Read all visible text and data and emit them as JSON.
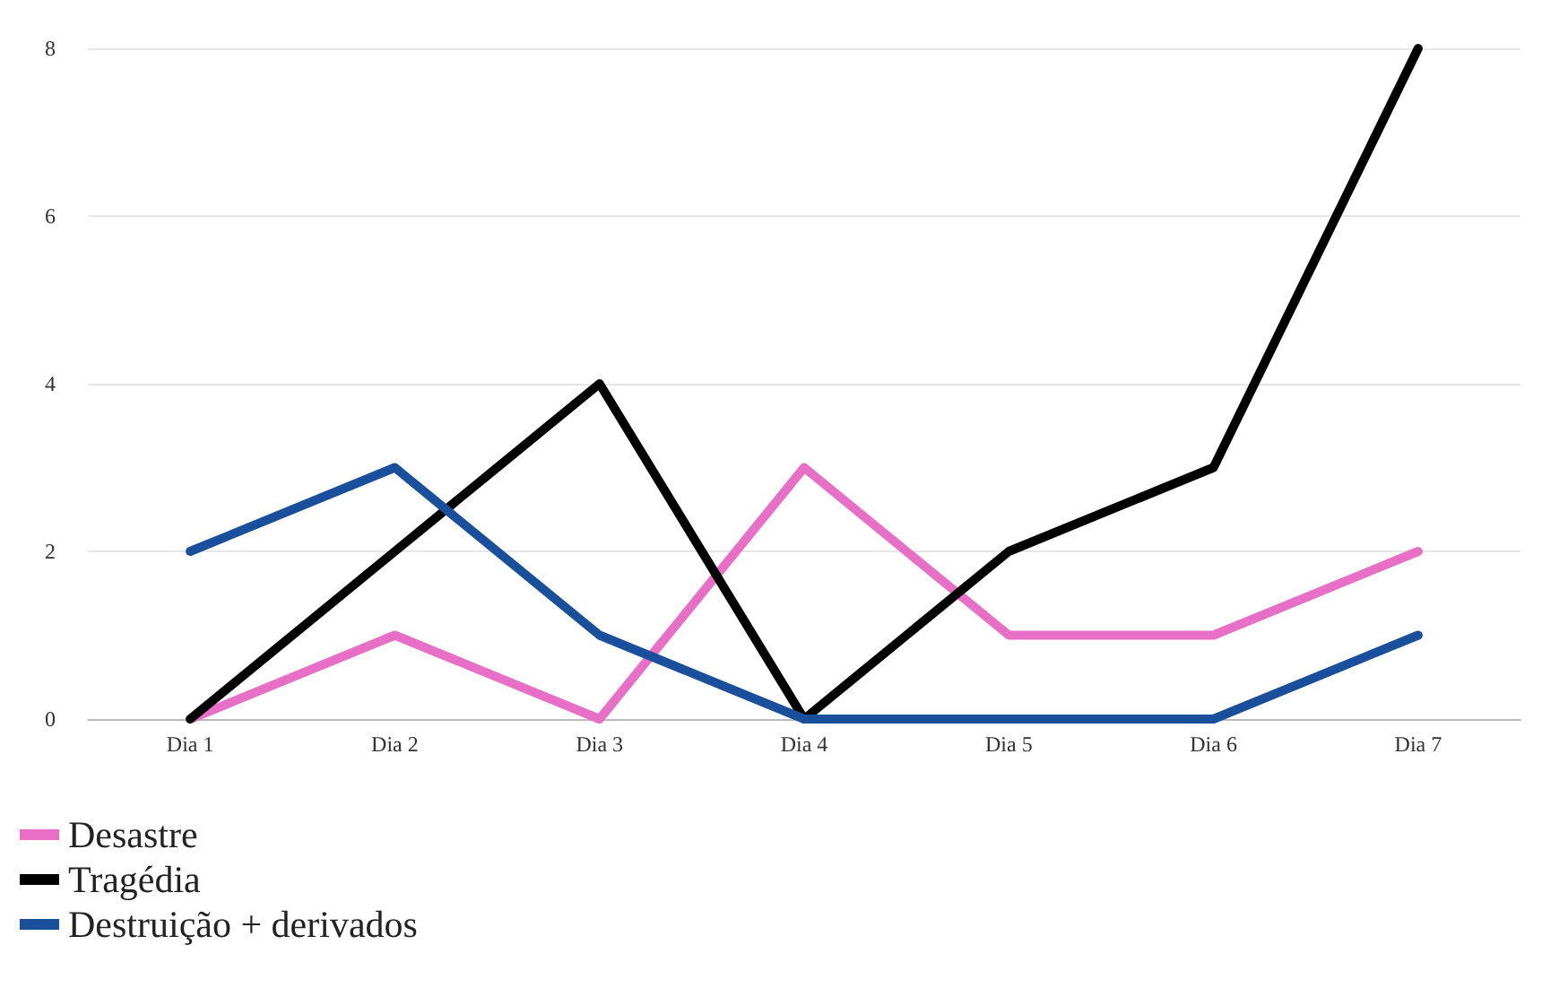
{
  "chart_data": {
    "type": "line",
    "categories": [
      "Dia 1",
      "Dia 2",
      "Dia 3",
      "Dia 4",
      "Dia 5",
      "Dia 6",
      "Dia 7"
    ],
    "series": [
      {
        "name": "Desastre",
        "color": "#e86fc6",
        "values": [
          0,
          1,
          0,
          3,
          1,
          1,
          2
        ]
      },
      {
        "name": "Tragédia",
        "color": "#000000",
        "values": [
          0,
          2,
          4,
          0,
          2,
          3,
          8
        ]
      },
      {
        "name": "Destruição + derivados",
        "color": "#1a4f9c",
        "values": [
          2,
          3,
          1,
          0,
          0,
          0,
          1
        ]
      }
    ],
    "ylim": [
      0,
      8
    ],
    "yticks": [
      0,
      2,
      4,
      6,
      8
    ],
    "grid": "y",
    "legend": "bottom left",
    "marker": "none",
    "line_style": "solid"
  }
}
